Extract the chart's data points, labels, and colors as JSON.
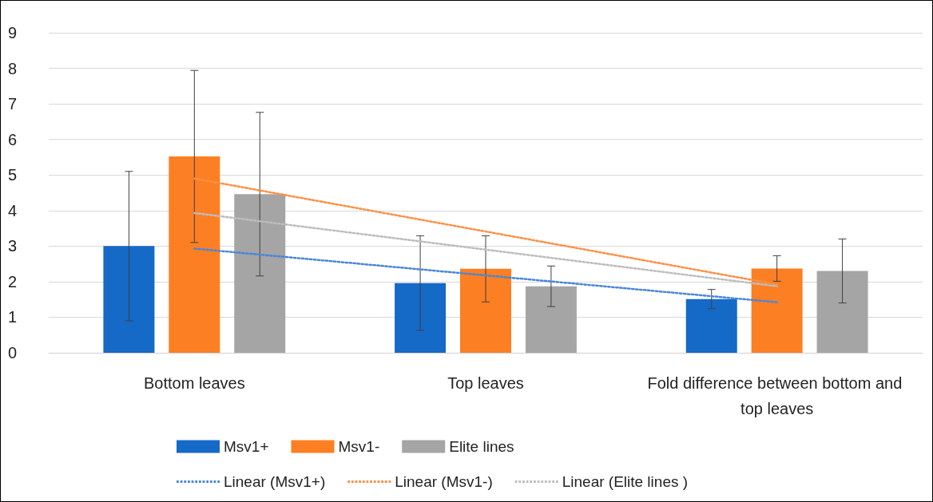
{
  "chart_data": {
    "type": "bar",
    "categories": [
      "Bottom leaves",
      "Top leaves",
      "Fold difference between bottom and top leaves"
    ],
    "ylim": [
      0,
      9
    ],
    "yticks": [
      0,
      1,
      2,
      3,
      4,
      5,
      6,
      7,
      8,
      9
    ],
    "grid": "y",
    "legend": "bottom",
    "series": [
      {
        "name": "Msv1+",
        "color": "#1569c7",
        "values": [
          3.0,
          1.96,
          1.51
        ],
        "errors": [
          2.1,
          1.33,
          0.27
        ]
      },
      {
        "name": "Msv1-",
        "color": "#fd7f23",
        "values": [
          5.52,
          2.36,
          2.37
        ],
        "errors": [
          2.42,
          0.93,
          0.36
        ]
      },
      {
        "name": "Elite lines",
        "color": "#a5a5a5",
        "values": [
          4.46,
          1.87,
          2.3
        ],
        "errors": [
          2.3,
          0.57,
          0.9
        ]
      },
      {
        "name": "Linear (Msv1+)",
        "type": "line",
        "line_style": "dotted",
        "marker": "none",
        "color": "#4a86d8",
        "x": [
          "Bottom leaves",
          "Fold difference between bottom and top leaves"
        ],
        "values": [
          2.93,
          1.42
        ]
      },
      {
        "name": "Linear (Msv1-)",
        "type": "line",
        "line_style": "dotted",
        "marker": "none",
        "color": "#fd8f45",
        "x": [
          "Bottom leaves",
          "Fold difference between bottom and top leaves"
        ],
        "values": [
          4.9,
          1.92
        ]
      },
      {
        "name": "Linear (Elite lines )",
        "type": "line",
        "line_style": "dotted",
        "marker": "none",
        "color": "#bdbdbd",
        "x": [
          "Bottom leaves",
          "Fold difference between bottom and top leaves"
        ],
        "values": [
          3.93,
          1.87
        ]
      }
    ]
  }
}
